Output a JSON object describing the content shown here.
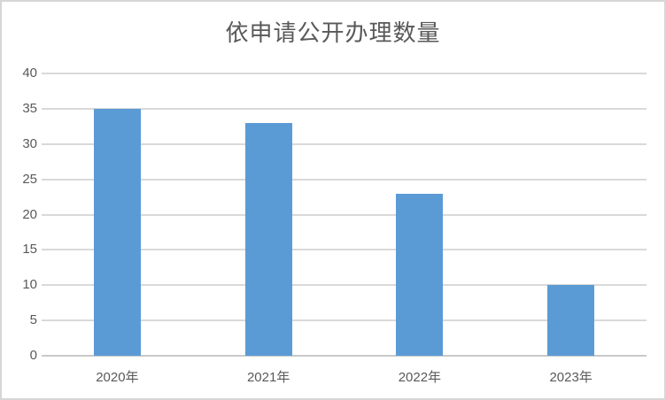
{
  "chart_data": {
    "type": "bar",
    "title": "依申请公开办理数量",
    "categories": [
      "2020年",
      "2021年",
      "2022年",
      "2023年"
    ],
    "values": [
      35,
      33,
      23,
      10
    ],
    "xlabel": "",
    "ylabel": "",
    "ylim": [
      0,
      40
    ],
    "ytick_step": 5,
    "ytick_labels": [
      "0",
      "5",
      "10",
      "15",
      "20",
      "25",
      "30",
      "35",
      "40"
    ],
    "grid": true,
    "legend_position": "none",
    "colors": {
      "bar": "#5b9bd5",
      "gridline": "#d9d9d9",
      "axis_line": "#c9c9c9",
      "text": "#595959",
      "frame_border": "#d6d6d6",
      "background": "#ffffff"
    }
  }
}
